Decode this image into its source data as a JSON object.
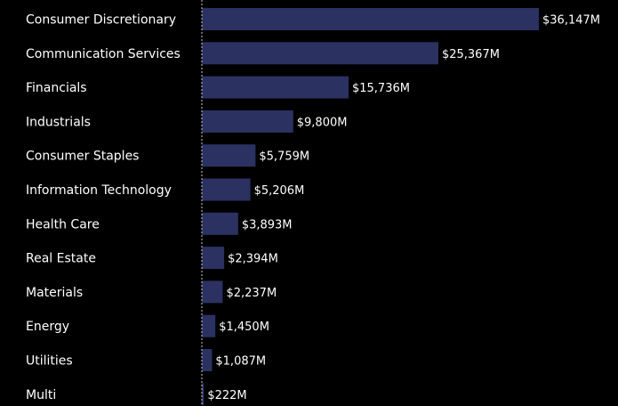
{
  "chart_data": {
    "type": "bar",
    "orientation": "horizontal",
    "categories": [
      "Consumer Discretionary",
      "Communication Services",
      "Financials",
      "Industrials",
      "Consumer Staples",
      "Information Technology",
      "Health Care",
      "Real Estate",
      "Materials",
      "Energy",
      "Utilities",
      "Multi"
    ],
    "values": [
      36147,
      25367,
      15736,
      9800,
      5759,
      5206,
      3893,
      2394,
      2237,
      1450,
      1087,
      222
    ],
    "value_labels": [
      "$36,147M",
      "$25,367M",
      "$15,736M",
      "$9,800M",
      "$5,759M",
      "$5,206M",
      "$3,893M",
      "$2,394M",
      "$2,237M",
      "$1,450M",
      "$1,087M",
      "$222M"
    ],
    "title": "",
    "xlabel": "",
    "ylabel": "",
    "xlim": [
      0,
      36147
    ],
    "grid": false,
    "legend": "none",
    "colors": {
      "background": "#000000",
      "bar": "#2b3160",
      "text": "#ffffff",
      "axis_line": "#c8c8c8"
    }
  }
}
